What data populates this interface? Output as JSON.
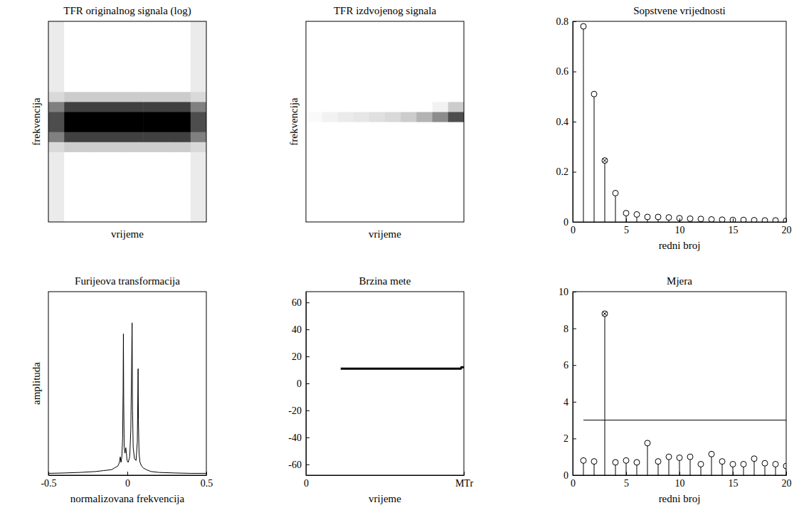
{
  "chart_data": [
    {
      "type": "heatmap",
      "title": "TFR originalnog signala (log)",
      "x_label": "vrijeme",
      "y_label": "frekvencija",
      "xlim": [
        0,
        1
      ],
      "ylim": [
        0,
        1
      ],
      "tick_labels": false,
      "zlim": [
        0,
        1
      ],
      "z": [
        [
          0.08,
          0,
          0,
          0,
          0,
          0,
          0,
          0,
          0,
          0.08
        ],
        [
          0.08,
          0,
          0,
          0,
          0,
          0,
          0,
          0,
          0,
          0.08
        ],
        [
          0.08,
          0,
          0,
          0,
          0,
          0,
          0,
          0,
          0,
          0.08
        ],
        [
          0.08,
          0,
          0,
          0,
          0,
          0,
          0,
          0,
          0,
          0.08
        ],
        [
          0.08,
          0,
          0,
          0,
          0,
          0,
          0,
          0,
          0,
          0.08
        ],
        [
          0.08,
          0,
          0,
          0,
          0,
          0,
          0,
          0,
          0,
          0.08
        ],
        [
          0.08,
          0,
          0,
          0,
          0,
          0,
          0,
          0,
          0,
          0.08
        ],
        [
          0.15,
          0.2,
          0.2,
          0.2,
          0.2,
          0.2,
          0.2,
          0.2,
          0.2,
          0.15
        ],
        [
          0.5,
          0.75,
          0.75,
          0.75,
          0.75,
          0.75,
          0.75,
          0.75,
          0.75,
          0.5
        ],
        [
          0.7,
          1,
          1,
          1,
          1,
          1,
          1,
          1,
          1,
          0.7
        ],
        [
          0.7,
          1,
          1,
          1,
          1,
          1,
          1,
          1,
          1,
          0.7
        ],
        [
          0.5,
          0.75,
          0.75,
          0.75,
          0.75,
          0.75,
          0.75,
          0.75,
          0.75,
          0.5
        ],
        [
          0.15,
          0.2,
          0.2,
          0.2,
          0.2,
          0.2,
          0.2,
          0.2,
          0.2,
          0.15
        ],
        [
          0.08,
          0,
          0,
          0,
          0,
          0,
          0,
          0,
          0,
          0.08
        ],
        [
          0.08,
          0,
          0,
          0,
          0,
          0,
          0,
          0,
          0,
          0.08
        ],
        [
          0.08,
          0,
          0,
          0,
          0,
          0,
          0,
          0,
          0,
          0.08
        ],
        [
          0.08,
          0,
          0,
          0,
          0,
          0,
          0,
          0,
          0,
          0.08
        ],
        [
          0.08,
          0,
          0,
          0,
          0,
          0,
          0,
          0,
          0,
          0.08
        ],
        [
          0.08,
          0,
          0,
          0,
          0,
          0,
          0,
          0,
          0,
          0.08
        ],
        [
          0.08,
          0,
          0,
          0,
          0,
          0,
          0,
          0,
          0,
          0.08
        ]
      ]
    },
    {
      "type": "heatmap",
      "title": "TFR izdvojenog signala",
      "x_label": "vrijeme",
      "y_label": "frekvencija",
      "xlim": [
        0,
        1
      ],
      "ylim": [
        0,
        1
      ],
      "tick_labels": false,
      "zlim": [
        0,
        1
      ],
      "z": [
        [
          0,
          0,
          0,
          0,
          0,
          0,
          0,
          0,
          0,
          0
        ],
        [
          0,
          0,
          0,
          0,
          0,
          0,
          0,
          0,
          0,
          0
        ],
        [
          0,
          0,
          0,
          0,
          0,
          0,
          0,
          0,
          0,
          0
        ],
        [
          0,
          0,
          0,
          0,
          0,
          0,
          0,
          0,
          0,
          0
        ],
        [
          0,
          0,
          0,
          0,
          0,
          0,
          0,
          0,
          0,
          0
        ],
        [
          0,
          0,
          0,
          0,
          0,
          0,
          0,
          0,
          0,
          0
        ],
        [
          0,
          0,
          0,
          0,
          0,
          0,
          0,
          0,
          0,
          0
        ],
        [
          0,
          0,
          0,
          0,
          0,
          0,
          0,
          0,
          0,
          0
        ],
        [
          0,
          0,
          0,
          0,
          0,
          0,
          0,
          0,
          0,
          0
        ],
        [
          0,
          0,
          0,
          0,
          0,
          0,
          0,
          0,
          0,
          0
        ],
        [
          0.02,
          0.05,
          0.08,
          0.1,
          0.12,
          0.15,
          0.2,
          0.3,
          0.45,
          0.7
        ],
        [
          0,
          0,
          0,
          0,
          0,
          0,
          0,
          0,
          0.05,
          0.2
        ],
        [
          0,
          0,
          0,
          0,
          0,
          0,
          0,
          0,
          0,
          0
        ],
        [
          0,
          0,
          0,
          0,
          0,
          0,
          0,
          0,
          0,
          0
        ],
        [
          0,
          0,
          0,
          0,
          0,
          0,
          0,
          0,
          0,
          0
        ],
        [
          0,
          0,
          0,
          0,
          0,
          0,
          0,
          0,
          0,
          0
        ],
        [
          0,
          0,
          0,
          0,
          0,
          0,
          0,
          0,
          0,
          0
        ],
        [
          0,
          0,
          0,
          0,
          0,
          0,
          0,
          0,
          0,
          0
        ],
        [
          0,
          0,
          0,
          0,
          0,
          0,
          0,
          0,
          0,
          0
        ],
        [
          0,
          0,
          0,
          0,
          0,
          0,
          0,
          0,
          0,
          0
        ]
      ]
    },
    {
      "type": "stem",
      "title": "Sopstvene vrijednosti",
      "x_label": "redni broj",
      "x": [
        1,
        2,
        3,
        4,
        5,
        6,
        7,
        8,
        9,
        10,
        11,
        12,
        13,
        14,
        15,
        16,
        17,
        18,
        19,
        20
      ],
      "series": [
        {
          "marker": "circle",
          "values": [
            0.78,
            0.51,
            null,
            0.115,
            0.035,
            0.03,
            0.02,
            0.02,
            0.018,
            0.015,
            0.013,
            0.012,
            0.01,
            0.009,
            0.008,
            0.008,
            0.007,
            0.006,
            0.006,
            0.005
          ]
        },
        {
          "marker": "circle-x",
          "values": [
            null,
            null,
            0.245,
            null,
            null,
            null,
            null,
            null,
            null,
            null,
            null,
            null,
            null,
            null,
            null,
            null,
            null,
            null,
            null,
            null
          ]
        }
      ],
      "xlim": [
        0,
        20
      ],
      "xticks": [
        0,
        5,
        10,
        15,
        20
      ],
      "ylim": [
        0,
        0.8
      ],
      "yticks": [
        0,
        0.2,
        0.4,
        0.6,
        0.8
      ]
    },
    {
      "type": "line",
      "title": "Furijeova transformacija",
      "x_label": "normalizovana frekvencija",
      "y_label": "amplituda",
      "x": [
        -0.5,
        -0.4,
        -0.3,
        -0.2,
        -0.15,
        -0.1,
        -0.08,
        -0.06,
        -0.05,
        -0.045,
        -0.04,
        -0.035,
        -0.03,
        -0.027,
        -0.025,
        -0.023,
        -0.02,
        -0.015,
        -0.01,
        -0.006,
        -0.002,
        0.005,
        0.015,
        0.022,
        0.027,
        0.03,
        0.033,
        0.037,
        0.045,
        0.055,
        0.063,
        0.066,
        0.068,
        0.07,
        0.074,
        0.08,
        0.09,
        0.1,
        0.12,
        0.15,
        0.2,
        0.3,
        0.4,
        0.5
      ],
      "values": [
        0.01,
        0.012,
        0.015,
        0.02,
        0.025,
        0.03,
        0.04,
        0.05,
        0.07,
        0.1,
        0.07,
        0.1,
        0.2,
        0.45,
        0.77,
        0.4,
        0.15,
        0.12,
        0.15,
        0.12,
        0.08,
        0.07,
        0.1,
        0.25,
        0.6,
        0.83,
        0.35,
        0.15,
        0.09,
        0.08,
        0.18,
        0.4,
        0.58,
        0.3,
        0.12,
        0.07,
        0.05,
        0.04,
        0.03,
        0.02,
        0.015,
        0.012,
        0.01,
        0.01
      ],
      "xlim": [
        -0.5,
        0.5
      ],
      "xticks": [
        -0.5,
        0,
        0.5
      ],
      "ylim": [
        0,
        1
      ],
      "tick_labels": "x"
    },
    {
      "type": "line",
      "title": "Brzina mete",
      "x_label": "vrijeme",
      "x": [
        0.22,
        0.5,
        0.98,
        0.985,
        1
      ],
      "values": [
        11,
        11,
        11,
        12,
        12
      ],
      "xlim": [
        0,
        1
      ],
      "xticks": [
        0,
        {
          "value": 1,
          "label": "MTr"
        }
      ],
      "ylim": [
        -68,
        68
      ],
      "yticks": [
        -60,
        -40,
        -20,
        0,
        20,
        40,
        60
      ]
    },
    {
      "type": "stem",
      "title": "Mjera",
      "x_label": "redni broj",
      "x": [
        1,
        2,
        3,
        4,
        5,
        6,
        7,
        8,
        9,
        10,
        11,
        12,
        13,
        14,
        15,
        16,
        17,
        18,
        19,
        20
      ],
      "series": [
        {
          "marker": "circle",
          "values": [
            0.8,
            0.75,
            null,
            0.7,
            0.8,
            0.7,
            1.75,
            0.75,
            1,
            0.95,
            1,
            0.6,
            1.15,
            0.75,
            0.6,
            0.6,
            0.9,
            0.65,
            0.6,
            0.5
          ]
        },
        {
          "marker": "circle-x",
          "values": [
            null,
            null,
            8.8,
            null,
            null,
            null,
            null,
            null,
            null,
            null,
            null,
            null,
            null,
            null,
            null,
            null,
            null,
            null,
            null,
            null
          ]
        }
      ],
      "threshold": {
        "y": 3,
        "x": [
          1,
          20
        ]
      },
      "xlim": [
        0,
        20
      ],
      "xticks": [
        0,
        5,
        10,
        15,
        20
      ],
      "ylim": [
        0,
        10
      ],
      "yticks": [
        0,
        2,
        4,
        6,
        8,
        10
      ]
    }
  ]
}
